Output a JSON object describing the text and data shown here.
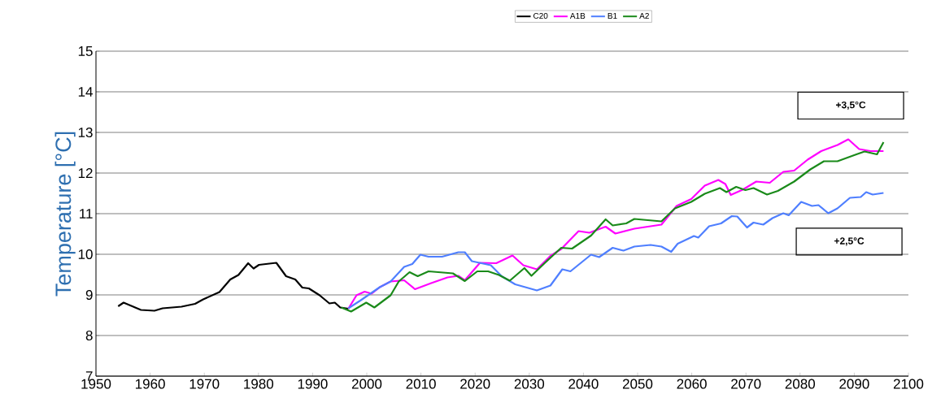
{
  "chart_data": {
    "type": "line",
    "ylabel": "Temperature [°C]",
    "legend": "top",
    "grid": "y",
    "marker": "none",
    "line_style": "solid",
    "xlim": [
      1950,
      2100
    ],
    "ylim": [
      7,
      15
    ],
    "xticks": [
      1950,
      1960,
      1970,
      1980,
      1990,
      2000,
      2010,
      2020,
      2030,
      2040,
      2050,
      2060,
      2070,
      2080,
      2090,
      2100
    ],
    "yticks": [
      7,
      8,
      9,
      10,
      11,
      12,
      13,
      14,
      15
    ],
    "annotations": [
      "+3,5°C",
      "+2,5°C"
    ],
    "series": [
      {
        "name": "C20",
        "color": "#000000",
        "x": [
          1954.1,
          1955.1,
          1958.3,
          1960.8,
          1962.3,
          1965.8,
          1968.3,
          1969.8,
          1972.8,
          1974.8,
          1976.3,
          1978.1,
          1979.1,
          1980.1,
          1983.3,
          1985.1,
          1986.8,
          1988.1,
          1989.3,
          1991.3,
          1993.1,
          1994.1,
          1995.1,
          1996.6
        ],
        "values": [
          8.72,
          8.81,
          8.63,
          8.61,
          8.67,
          8.71,
          8.78,
          8.89,
          9.07,
          9.38,
          9.49,
          9.78,
          9.65,
          9.74,
          9.79,
          9.46,
          9.38,
          9.18,
          9.16,
          8.99,
          8.79,
          8.81,
          8.69,
          8.66
        ]
      },
      {
        "name": "A1B",
        "color": "#ff00ff",
        "x": [
          1996.6,
          1998.1,
          1999.6,
          2000.9,
          2002.4,
          2004.4,
          2006.9,
          2008.9,
          2011.9,
          2014.9,
          2016.9,
          2018.1,
          2020.9,
          2023.9,
          2026.9,
          2028.9,
          2031.4,
          2033.9,
          2035.9,
          2039.1,
          2041.1,
          2044.1,
          2045.9,
          2049.4,
          2054.4,
          2057.2,
          2059.9,
          2062.4,
          2064.9,
          2066.2,
          2067.2,
          2069.4,
          2071.9,
          2074.4,
          2076.9,
          2078.9,
          2081.4,
          2083.9,
          2086.9,
          2088.9,
          2090.9,
          2093.0,
          2095.4
        ],
        "values": [
          8.66,
          8.99,
          9.08,
          9.03,
          9.19,
          9.33,
          9.36,
          9.14,
          9.29,
          9.43,
          9.47,
          9.36,
          9.79,
          9.78,
          9.97,
          9.73,
          9.63,
          9.96,
          10.13,
          10.57,
          10.53,
          10.68,
          10.51,
          10.63,
          10.73,
          11.19,
          11.36,
          11.69,
          11.83,
          11.73,
          11.46,
          11.59,
          11.79,
          11.76,
          12.03,
          12.06,
          12.33,
          12.54,
          12.69,
          12.83,
          12.59,
          12.54,
          12.54
        ]
      },
      {
        "name": "B1",
        "color": "#4f7fff",
        "x": [
          1996.6,
          1998.8,
          2002.4,
          2004.4,
          2006.9,
          2008.4,
          2009.9,
          2011.4,
          2013.9,
          2016.9,
          2018.1,
          2019.4,
          2022.9,
          2024.9,
          2027.4,
          2031.4,
          2033.9,
          2036.1,
          2037.6,
          2041.4,
          2042.9,
          2045.4,
          2047.4,
          2049.4,
          2052.4,
          2054.4,
          2056.2,
          2057.4,
          2060.4,
          2061.2,
          2063.2,
          2065.4,
          2067.4,
          2068.4,
          2070.2,
          2071.4,
          2073.2,
          2074.9,
          2076.9,
          2077.9,
          2080.2,
          2082.2,
          2083.4,
          2085.2,
          2086.9,
          2089.2,
          2091.2,
          2092.2,
          2093.4,
          2095.4
        ],
        "values": [
          8.67,
          8.86,
          9.19,
          9.33,
          9.69,
          9.76,
          9.99,
          9.94,
          9.94,
          10.05,
          10.05,
          9.83,
          9.73,
          9.46,
          9.26,
          9.11,
          9.23,
          9.63,
          9.58,
          9.99,
          9.93,
          10.16,
          10.09,
          10.19,
          10.23,
          10.19,
          10.06,
          10.26,
          10.45,
          10.41,
          10.69,
          10.76,
          10.94,
          10.93,
          10.66,
          10.78,
          10.73,
          10.89,
          11.01,
          10.96,
          11.29,
          11.19,
          11.21,
          11.01,
          11.13,
          11.39,
          11.41,
          11.53,
          11.47,
          11.51
        ]
      },
      {
        "name": "A2",
        "color": "#1a8a1a",
        "x": [
          1995.3,
          1997.1,
          1999.9,
          2001.4,
          2004.4,
          2005.9,
          2007.9,
          2009.4,
          2011.4,
          2015.9,
          2018.1,
          2020.4,
          2022.4,
          2024.4,
          2026.4,
          2029.1,
          2030.4,
          2032.9,
          2035.9,
          2037.9,
          2041.4,
          2044.1,
          2045.4,
          2047.9,
          2049.4,
          2054.4,
          2056.9,
          2059.9,
          2062.4,
          2065.2,
          2066.4,
          2068.2,
          2069.9,
          2071.4,
          2073.9,
          2075.9,
          2078.9,
          2081.9,
          2084.4,
          2086.9,
          2090.4,
          2091.9,
          2094.2,
          2095.4
        ],
        "values": [
          8.69,
          8.59,
          8.81,
          8.69,
          8.99,
          9.33,
          9.56,
          9.46,
          9.58,
          9.53,
          9.34,
          9.58,
          9.58,
          9.49,
          9.35,
          9.66,
          9.47,
          9.79,
          10.16,
          10.14,
          10.46,
          10.86,
          10.71,
          10.76,
          10.87,
          10.81,
          11.13,
          11.29,
          11.49,
          11.63,
          11.53,
          11.66,
          11.58,
          11.63,
          11.47,
          11.56,
          11.79,
          12.09,
          12.29,
          12.29,
          12.46,
          12.53,
          12.46,
          12.76
        ]
      }
    ]
  }
}
